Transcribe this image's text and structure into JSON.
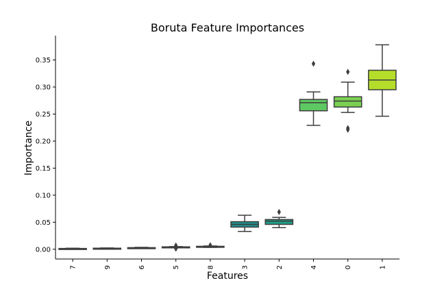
{
  "chart_data": {
    "type": "box",
    "title": "Boruta Feature Importances",
    "xlabel": "Features",
    "ylabel": "Importance",
    "ylim": [
      -0.018,
      0.395
    ],
    "yticks": [
      "0.00",
      "0.05",
      "0.10",
      "0.15",
      "0.20",
      "0.25",
      "0.30",
      "0.35"
    ],
    "ytick_values": [
      0.0,
      0.05,
      0.1,
      0.15,
      0.2,
      0.25,
      0.3,
      0.35
    ],
    "grid": false,
    "categories": [
      "7",
      "9",
      "6",
      "5",
      "8",
      "3",
      "2",
      "4",
      "0",
      "1"
    ],
    "boxes": [
      {
        "label": "7",
        "color": "#414487",
        "whislo": 0.0,
        "q1": 0.0005,
        "med": 0.001,
        "q3": 0.0015,
        "whishi": 0.002,
        "fliers": []
      },
      {
        "label": "9",
        "color": "#3b528b",
        "whislo": 0.0005,
        "q1": 0.001,
        "med": 0.0015,
        "q3": 0.002,
        "whishi": 0.0025,
        "fliers": []
      },
      {
        "label": "6",
        "color": "#33638d",
        "whislo": 0.0015,
        "q1": 0.002,
        "med": 0.0025,
        "q3": 0.003,
        "whishi": 0.0035,
        "fliers": []
      },
      {
        "label": "5",
        "color": "#2c728e",
        "whislo": 0.003,
        "q1": 0.0035,
        "med": 0.004,
        "q3": 0.0045,
        "whishi": 0.005,
        "fliers": [
          0.001,
          0.007
        ]
      },
      {
        "label": "8",
        "color": "#26828e",
        "whislo": 0.0035,
        "q1": 0.004,
        "med": 0.0045,
        "q3": 0.0055,
        "whishi": 0.006,
        "fliers": [
          0.0075
        ]
      },
      {
        "label": "3",
        "color": "#21918c",
        "whislo": 0.033,
        "q1": 0.041,
        "med": 0.046,
        "q3": 0.051,
        "whishi": 0.063,
        "fliers": []
      },
      {
        "label": "2",
        "color": "#1fa088",
        "whislo": 0.04,
        "q1": 0.046,
        "med": 0.052,
        "q3": 0.055,
        "whishi": 0.059,
        "fliers": [
          0.069
        ]
      },
      {
        "label": "4",
        "color": "#5ec962",
        "whislo": 0.229,
        "q1": 0.256,
        "med": 0.271,
        "q3": 0.277,
        "whishi": 0.291,
        "fliers": [
          0.343
        ]
      },
      {
        "label": "0",
        "color": "#7ad151",
        "whislo": 0.253,
        "q1": 0.263,
        "med": 0.274,
        "q3": 0.282,
        "whishi": 0.309,
        "fliers": [
          0.328,
          0.224,
          0.221
        ]
      },
      {
        "label": "1",
        "color": "#b5de2b",
        "whislo": 0.246,
        "q1": 0.295,
        "med": 0.313,
        "q3": 0.331,
        "whishi": 0.378,
        "fliers": []
      }
    ]
  }
}
